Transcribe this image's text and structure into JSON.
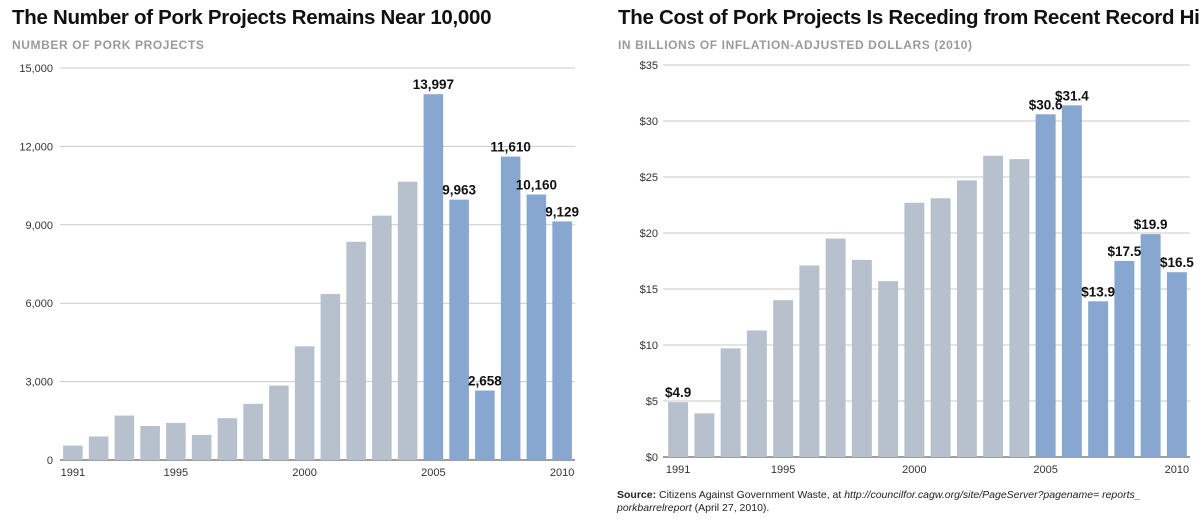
{
  "chart_data": [
    {
      "type": "bar",
      "title": "The Number of Pork Projects Remains Near 10,000",
      "subtitle": "NUMBER OF PORK PROJECTS",
      "x": [
        1991,
        1992,
        1993,
        1994,
        1995,
        1996,
        1997,
        1998,
        1999,
        2000,
        2001,
        2002,
        2003,
        2004,
        2005,
        2006,
        2007,
        2008,
        2009,
        2010
      ],
      "values": [
        550,
        900,
        1700,
        1300,
        1420,
        960,
        1600,
        2150,
        2850,
        4350,
        6350,
        8350,
        9350,
        10650,
        13997,
        9963,
        2658,
        11610,
        10160,
        9129
      ],
      "tick_labels_x": [
        "1991",
        "1995",
        "2000",
        "2005",
        "2010"
      ],
      "yticks": [
        {
          "value": 0,
          "label": "0"
        },
        {
          "value": 3000,
          "label": "3,000"
        },
        {
          "value": 6000,
          "label": "6,000"
        },
        {
          "value": 9000,
          "label": "9,000"
        },
        {
          "value": 12000,
          "label": "12,000"
        },
        {
          "value": 15000,
          "label": "15,000"
        }
      ],
      "ylim": [
        0,
        15000
      ],
      "grid": true,
      "data_labels": [
        {
          "year": 2005,
          "label": "13,997"
        },
        {
          "year": 2006,
          "label": "9,963"
        },
        {
          "year": 2007,
          "label": "2,658"
        },
        {
          "year": 2008,
          "label": "11,610"
        },
        {
          "year": 2009,
          "label": "10,160"
        },
        {
          "year": 2010,
          "label": "9,129"
        }
      ],
      "highlight_from_year": 2005,
      "colors": {
        "normal": "#b7c1ce",
        "highlight": "#88a7d0"
      }
    },
    {
      "type": "bar",
      "title": "The Cost of Pork Projects Is Receding from Recent Record Highs",
      "subtitle": "IN BILLIONS OF INFLATION-ADJUSTED DOLLARS (2010)",
      "x": [
        1991,
        1992,
        1993,
        1994,
        1995,
        1996,
        1997,
        1998,
        1999,
        2000,
        2001,
        2002,
        2003,
        2004,
        2005,
        2006,
        2007,
        2008,
        2009,
        2010
      ],
      "values": [
        4.9,
        3.9,
        9.7,
        11.3,
        14.0,
        17.1,
        19.5,
        17.6,
        15.7,
        22.7,
        23.1,
        24.7,
        26.9,
        26.6,
        30.6,
        31.4,
        13.9,
        17.5,
        19.9,
        16.5
      ],
      "tick_labels_x": [
        "1991",
        "1995",
        "2000",
        "2005",
        "2010"
      ],
      "yticks": [
        {
          "value": 0,
          "label": "$0"
        },
        {
          "value": 5,
          "label": "$5"
        },
        {
          "value": 10,
          "label": "$10"
        },
        {
          "value": 15,
          "label": "$15"
        },
        {
          "value": 20,
          "label": "$20"
        },
        {
          "value": 25,
          "label": "$25"
        },
        {
          "value": 30,
          "label": "$30"
        },
        {
          "value": 35,
          "label": "$35"
        }
      ],
      "ylim": [
        0,
        35
      ],
      "grid": true,
      "data_labels": [
        {
          "year": 1991,
          "label": "$4.9"
        },
        {
          "year": 2005,
          "label": "$30.6"
        },
        {
          "year": 2006,
          "label": "$31.4"
        },
        {
          "year": 2007,
          "label": "$13.9"
        },
        {
          "year": 2008,
          "label": "$17.5"
        },
        {
          "year": 2009,
          "label": "$19.9"
        },
        {
          "year": 2010,
          "label": "$16.5"
        }
      ],
      "highlight_from_year": 2005,
      "colors": {
        "normal": "#b7c1ce",
        "highlight": "#88a7d0"
      }
    }
  ],
  "source": {
    "label": "Source:",
    "text": " Citizens Against Government Waste, at ",
    "url": "http://councilfor.cagw.org/site/PageServer?pagename= reports_ porkbarrelreport",
    "date": " (April 27, 2010)."
  }
}
